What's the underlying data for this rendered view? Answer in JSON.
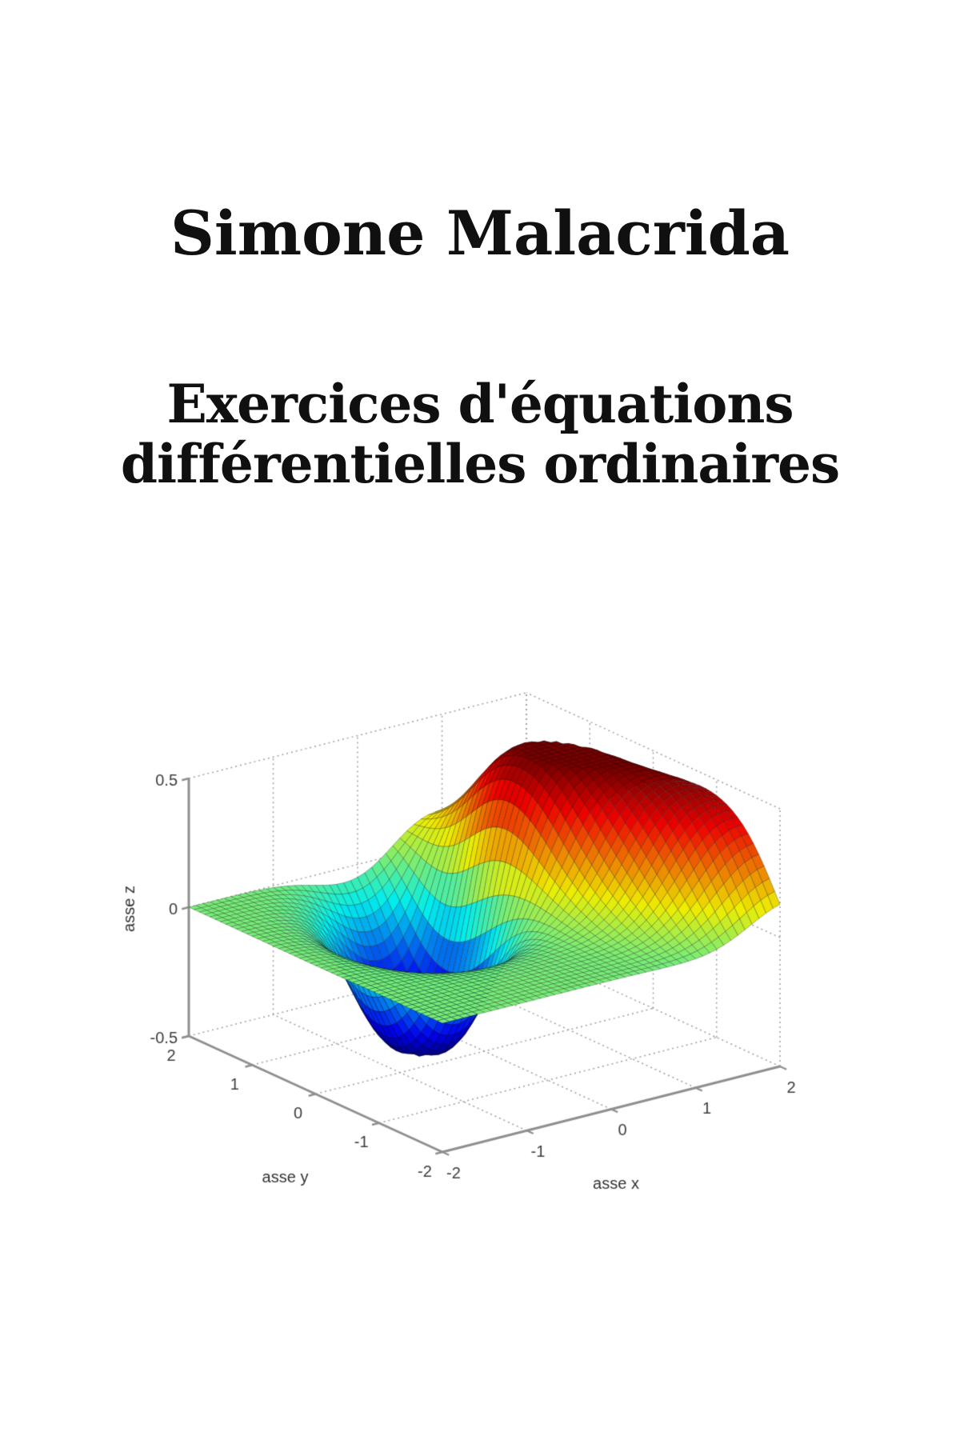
{
  "cover": {
    "author": "Simone Malacrida",
    "title_line1": "Exercices d'équations",
    "title_line2": "différentielles ordinaires",
    "background_color": "#ffffff",
    "text_color": "#101010"
  },
  "chart_data": {
    "type": "surface",
    "title": "",
    "xlabel": "asse x",
    "ylabel": "asse y",
    "zlabel": "asse z",
    "x_range": [
      -2,
      2
    ],
    "y_range": [
      -2,
      2
    ],
    "z_range": [
      -0.5,
      0.5
    ],
    "x_ticks": {
      "values": [
        -2,
        -1,
        0,
        1,
        2
      ],
      "labels": [
        "-2",
        "-1",
        "0",
        "1",
        "2"
      ]
    },
    "y_ticks": {
      "values": [
        -2,
        -1,
        0,
        1,
        2
      ],
      "labels": [
        "-2",
        "-1",
        "0",
        "1",
        "2"
      ]
    },
    "z_ticks": {
      "values": [
        -0.5,
        0,
        0.5
      ],
      "labels": [
        "-0.5",
        "0",
        "0.5"
      ]
    },
    "grid": true,
    "legend": false,
    "colormap": "jet",
    "mesh_n": 48,
    "surface_terms": [
      {
        "a": 0.46,
        "x0": 1.6,
        "y0": -0.35,
        "deg": -66,
        "su": 1.55,
        "sv": 0.52
      },
      {
        "a": 0.24,
        "x0": 1.15,
        "y0": 0.6,
        "deg": 0,
        "su": 0.45,
        "sv": 0.5
      },
      {
        "a": -0.44,
        "x0": -0.15,
        "y0": 0.85,
        "deg": 62,
        "su": 0.7,
        "sv": 0.46
      },
      {
        "a": -0.28,
        "x0": -0.45,
        "y0": 0.4,
        "deg": 0,
        "su": 0.4,
        "sv": 0.45
      },
      {
        "a": -0.18,
        "x0": 2.4,
        "y0": -2.4,
        "deg": 0,
        "su": 0.7,
        "sv": 0.7
      }
    ],
    "soft_clip": {
      "gain": 2.6,
      "norm": 0.8617
    },
    "projection": {
      "front_corner": [
        553,
        1440
      ],
      "x_unit": [
        105.5,
        -26.75
      ],
      "y_unit": [
        -79.25,
        -36.25
      ],
      "z_unit": [
        0,
        -322
      ]
    },
    "style": {
      "axis_color": "#8f8f8f",
      "axis_width": 3,
      "grid_color": "#9f9f9f",
      "grid_width": 1.5,
      "grid_dash": [
        2,
        4
      ],
      "edge_color": "rgba(0,0,0,0.45)",
      "edge_width": 0.6,
      "tick_font_px": 20,
      "tick_color": "#3d3d3d",
      "label_font_px": 20,
      "label_color": "#333333",
      "brightness": 0.93,
      "tick_len": 9,
      "x_tick_offset": [
        14,
        27
      ],
      "y_tick_offset": [
        -22,
        25
      ],
      "z_tick_offset": [
        -14,
        3
      ],
      "x_label_offset": [
        6,
        94
      ],
      "y_label_offset": [
        -38,
        105
      ],
      "z_label_offset": [
        -74,
        2
      ]
    }
  }
}
